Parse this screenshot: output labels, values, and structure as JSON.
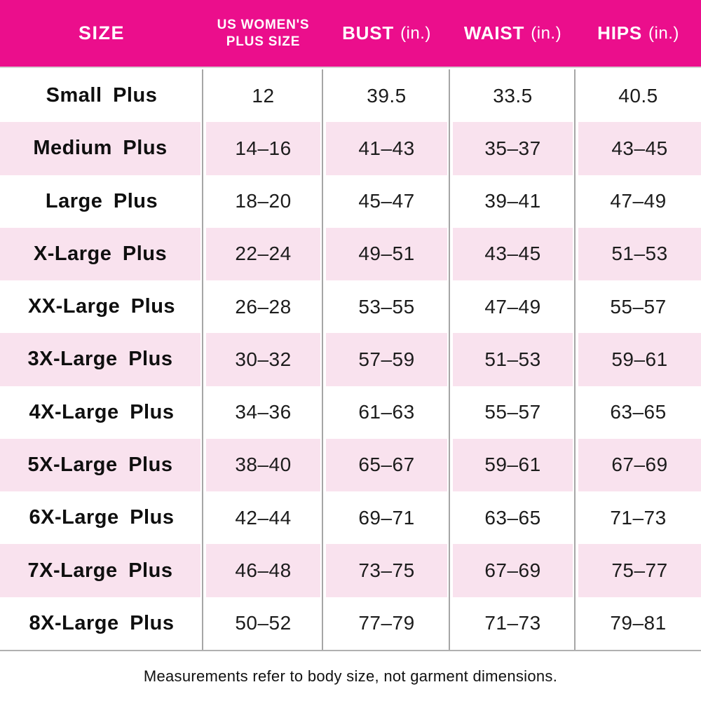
{
  "header": {
    "size": "SIZE",
    "us_line1": "US WOMEN'S",
    "us_line2": "PLUS SIZE",
    "bust": "BUST",
    "waist": "WAIST",
    "hips": "HIPS",
    "unit": "(in.)"
  },
  "footnote": "Measurements refer to body size, not garment dimensions.",
  "colors": {
    "header_bg": "#EB0E8C",
    "header_text": "#FFFFFF",
    "row_alt_bg": "#F9E2EE",
    "grid_line": "#A6A6A6",
    "body_text": "#1C1C1C"
  },
  "chart_data": {
    "type": "table",
    "columns": [
      "SIZE",
      "US WOMEN'S PLUS SIZE",
      "BUST (in.)",
      "WAIST (in.)",
      "HIPS (in.)"
    ],
    "rows": [
      [
        "Small Plus",
        "12",
        "39.5",
        "33.5",
        "40.5"
      ],
      [
        "Medium Plus",
        "14–16",
        "41–43",
        "35–37",
        "43–45"
      ],
      [
        "Large Plus",
        "18–20",
        "45–47",
        "39–41",
        "47–49"
      ],
      [
        "X-Large Plus",
        "22–24",
        "49–51",
        "43–45",
        "51–53"
      ],
      [
        "XX-Large Plus",
        "26–28",
        "53–55",
        "47–49",
        "55–57"
      ],
      [
        "3X-Large Plus",
        "30–32",
        "57–59",
        "51–53",
        "59–61"
      ],
      [
        "4X-Large Plus",
        "34–36",
        "61–63",
        "55–57",
        "63–65"
      ],
      [
        "5X-Large Plus",
        "38–40",
        "65–67",
        "59–61",
        "67–69"
      ],
      [
        "6X-Large Plus",
        "42–44",
        "69–71",
        "63–65",
        "71–73"
      ],
      [
        "7X-Large Plus",
        "46–48",
        "73–75",
        "67–69",
        "75–77"
      ],
      [
        "8X-Large Plus",
        "50–52",
        "77–79",
        "71–73",
        "79–81"
      ]
    ]
  }
}
